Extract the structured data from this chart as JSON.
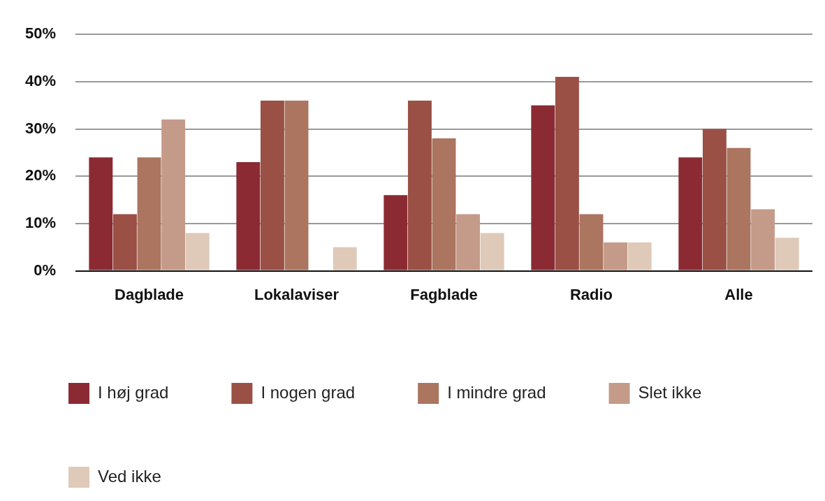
{
  "chart_data": {
    "type": "bar",
    "categories": [
      "Dagblade",
      "Lokalaviser",
      "Fagblade",
      "Radio",
      "Alle"
    ],
    "series": [
      {
        "name": "I høj grad",
        "color": "#8b2a32",
        "values": [
          24,
          23,
          16,
          35,
          24
        ]
      },
      {
        "name": "I nogen grad",
        "color": "#9a5045",
        "values": [
          12,
          36,
          36,
          41,
          30
        ]
      },
      {
        "name": "I mindre grad",
        "color": "#ab7560",
        "values": [
          24,
          36,
          28,
          12,
          26
        ]
      },
      {
        "name": "Slet ikke",
        "color": "#c49b88",
        "values": [
          32,
          null,
          12,
          6,
          13
        ]
      },
      {
        "name": "Ved ikke",
        "color": "#dfc9b8",
        "values": [
          8,
          5,
          8,
          6,
          7
        ]
      }
    ],
    "ylim": [
      0,
      50
    ],
    "yticks": [
      {
        "value": 0,
        "label": "0%"
      },
      {
        "value": 10,
        "label": "10%"
      },
      {
        "value": 20,
        "label": "20%"
      },
      {
        "value": 30,
        "label": "30%"
      },
      {
        "value": 40,
        "label": "40%"
      },
      {
        "value": 50,
        "label": "50%"
      }
    ],
    "grid": "y",
    "legend": "bottom"
  }
}
